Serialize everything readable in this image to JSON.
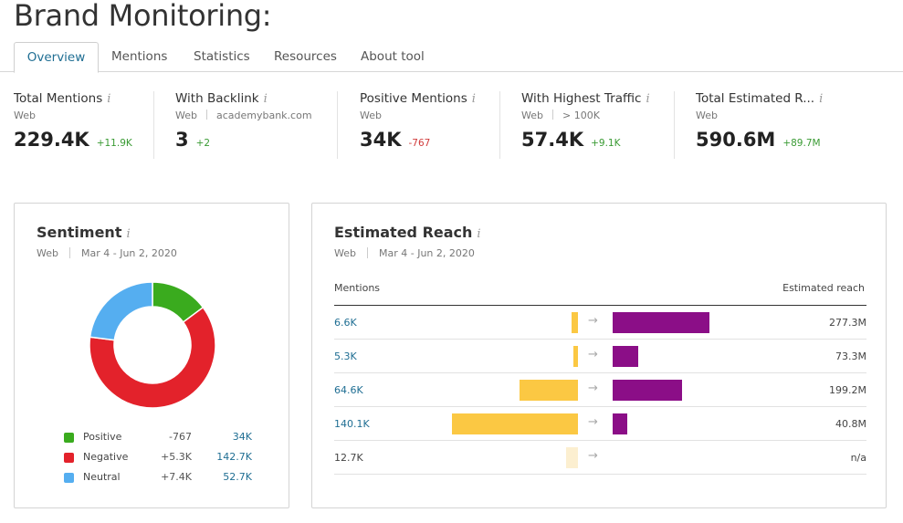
{
  "page_title": "Brand Monitoring:",
  "tabs": [
    {
      "label": "Overview",
      "active": true
    },
    {
      "label": "Mentions",
      "active": false
    },
    {
      "label": "Statistics",
      "active": false
    },
    {
      "label": "Resources",
      "active": false
    },
    {
      "label": "About tool",
      "active": false
    }
  ],
  "info_glyph": "i",
  "metrics": [
    {
      "title": "Total Mentions",
      "source": "Web",
      "filter": "",
      "value": "229.4K",
      "delta": "+11.9K",
      "delta_dir": "up"
    },
    {
      "title": "With Backlink",
      "source": "Web",
      "filter": "academybank.com",
      "value": "3",
      "delta": "+2",
      "delta_dir": "up"
    },
    {
      "title": "Positive Mentions",
      "source": "Web",
      "filter": "",
      "value": "34K",
      "delta": "-767",
      "delta_dir": "down"
    },
    {
      "title": "With Highest Traffic",
      "source": "Web",
      "filter": "> 100K",
      "value": "57.4K",
      "delta": "+9.1K",
      "delta_dir": "up"
    },
    {
      "title": "Total Estimated R...",
      "source": "Web",
      "filter": "",
      "value": "590.6M",
      "delta": "+89.7M",
      "delta_dir": "up"
    }
  ],
  "sentiment": {
    "title": "Sentiment",
    "source": "Web",
    "date_range": "Mar 4 - Jun 2, 2020",
    "legend": [
      {
        "label": "Positive",
        "delta": "-767",
        "value": "34K",
        "color": "#3aab1e"
      },
      {
        "label": "Negative",
        "delta": "+5.3K",
        "value": "142.7K",
        "color": "#e3222b"
      },
      {
        "label": "Neutral",
        "delta": "+7.4K",
        "value": "52.7K",
        "color": "#55aef0"
      }
    ]
  },
  "chart_data": {
    "type": "pie",
    "categories": [
      "Positive",
      "Negative",
      "Neutral"
    ],
    "values": [
      34,
      142.7,
      52.7
    ],
    "colors": [
      "#3aab1e",
      "#e3222b",
      "#55aef0"
    ],
    "title": "Sentiment"
  },
  "reach": {
    "title": "Estimated Reach",
    "source": "Web",
    "date_range": "Mar 4 - Jun 2, 2020",
    "col_mentions": "Mentions",
    "col_reach": "Estimated reach",
    "arrow": "→",
    "mention_color": "#fbc843",
    "mention_color_faded": "#fcefd0",
    "reach_color": "#8b0e87",
    "rows": [
      {
        "mentions": "6.6K",
        "mentions_num": 6.6,
        "reach": "277.3M",
        "reach_num": 277.3,
        "link": true
      },
      {
        "mentions": "5.3K",
        "mentions_num": 5.3,
        "reach": "73.3M",
        "reach_num": 73.3,
        "link": true
      },
      {
        "mentions": "64.6K",
        "mentions_num": 64.6,
        "reach": "199.2M",
        "reach_num": 199.2,
        "link": true
      },
      {
        "mentions": "140.1K",
        "mentions_num": 140.1,
        "reach": "40.8M",
        "reach_num": 40.8,
        "link": true
      },
      {
        "mentions": "12.7K",
        "mentions_num": 12.7,
        "reach": "n/a",
        "reach_num": null,
        "link": false
      }
    ]
  }
}
